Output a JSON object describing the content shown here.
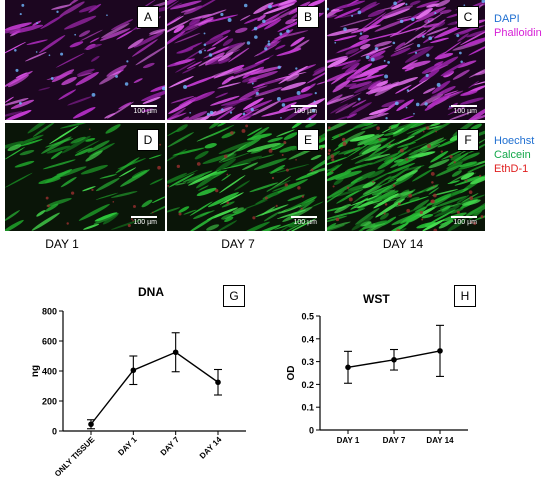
{
  "panels": [
    {
      "label": "A",
      "scale": "100 µm",
      "stain": "phalloidin"
    },
    {
      "label": "B",
      "scale": "100 µm",
      "stain": "phalloidin"
    },
    {
      "label": "C",
      "scale": "100 µm",
      "stain": "phalloidin"
    },
    {
      "label": "D",
      "scale": "100 µm",
      "stain": "calcein"
    },
    {
      "label": "E",
      "scale": "100 µm",
      "stain": "calcein"
    },
    {
      "label": "F",
      "scale": "100 µm",
      "stain": "calcein"
    }
  ],
  "legend_top": {
    "dapi": "DAPI",
    "phalloidin": "Phalloidin",
    "dapi_color": "#1f6fd1",
    "phalloidin_color": "#d61fd6"
  },
  "legend_bottom": {
    "hoechst": "Hoechst",
    "calcein": "Calcein",
    "ethd": "EthD-1",
    "hoechst_color": "#1f6fd1",
    "calcein_color": "#13a84a",
    "ethd_color": "#e02020"
  },
  "day_labels": [
    "DAY 1",
    "DAY 7",
    "DAY 14"
  ],
  "chart_data": [
    {
      "type": "line",
      "panel_label": "G",
      "title": "DNA",
      "xlabel": "",
      "ylabel": "ng",
      "categories": [
        "ONLY TISSUE",
        "DAY 1",
        "DAY 7",
        "DAY 14"
      ],
      "values": [
        45,
        405,
        525,
        325
      ],
      "error": [
        30,
        95,
        130,
        85
      ],
      "ylim": [
        0,
        800
      ],
      "yticks": [
        0,
        200,
        400,
        600,
        800
      ]
    },
    {
      "type": "line",
      "panel_label": "H",
      "title": "WST",
      "xlabel": "",
      "ylabel": "OD",
      "categories": [
        "DAY 1",
        "DAY 7",
        "DAY 14"
      ],
      "values": [
        0.275,
        0.308,
        0.347
      ],
      "error": [
        0.07,
        0.045,
        0.112
      ],
      "ylim": [
        0,
        0.5
      ],
      "yticks": [
        0,
        0.1,
        0.2,
        0.3,
        0.4,
        0.5
      ]
    }
  ]
}
